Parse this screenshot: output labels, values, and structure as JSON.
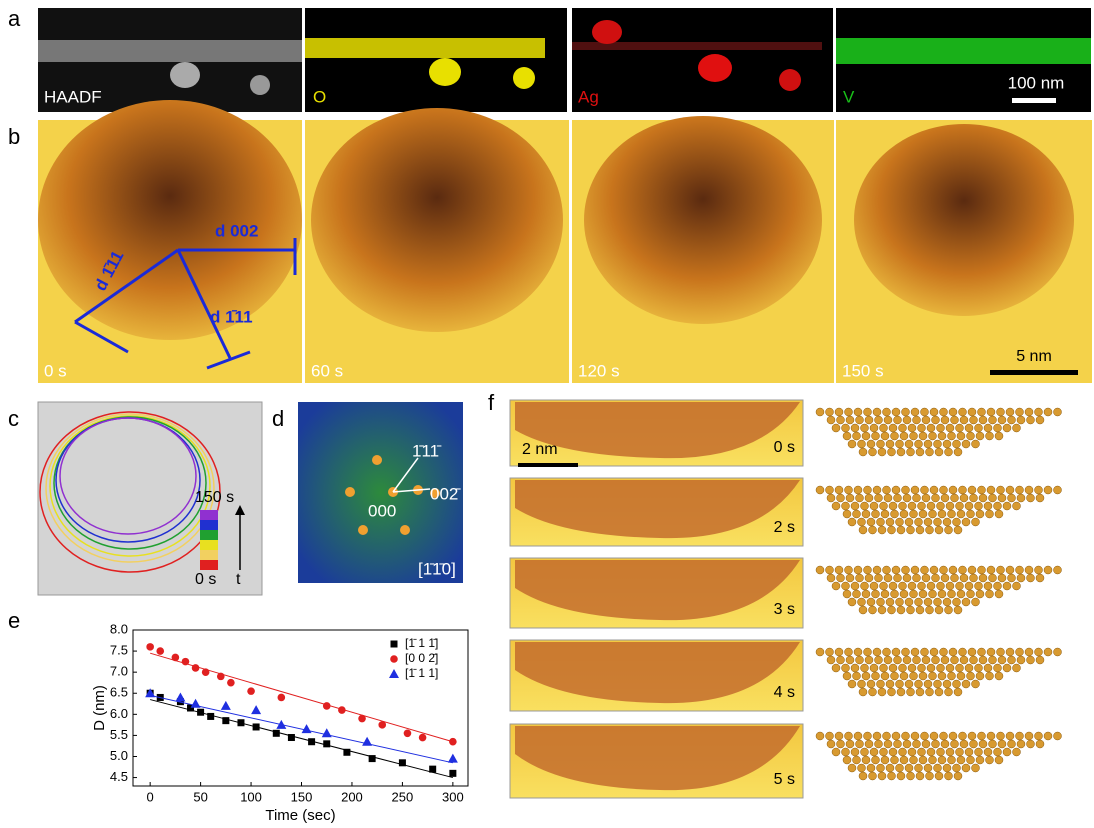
{
  "panel_a": {
    "label": "a",
    "tiles": [
      "HAADF",
      "O",
      "Ag",
      "V"
    ],
    "scale": "100 nm"
  },
  "panel_b": {
    "label": "b",
    "times": [
      "0 s",
      "60 s",
      "120 s",
      "150 s"
    ],
    "scale": "5 nm",
    "d_labels": [
      "d 002",
      "d 1̄11",
      "d 1̄11"
    ]
  },
  "panel_c": {
    "label": "c",
    "top": "150 s",
    "bottom": "0 s",
    "axis": "t"
  },
  "panel_d": {
    "label": "d",
    "spots": [
      "1̄11̄",
      "002̄",
      "000"
    ],
    "zone": "[1̄1̄0]"
  },
  "panel_f": {
    "label": "f",
    "scale": "2 nm",
    "times": [
      "0 s",
      "2 s",
      "3 s",
      "4 s",
      "5 s"
    ]
  },
  "chart_data": {
    "type": "scatter",
    "label": "e",
    "xlabel": "Time (sec)",
    "ylabel": "D (nm)",
    "xlim": [
      -17,
      315
    ],
    "ylim": [
      4.3,
      8.0
    ],
    "xticks": [
      0,
      50,
      100,
      150,
      200,
      250,
      300
    ],
    "yticks": [
      {
        "value": 4.5,
        "label": "4.5"
      },
      {
        "value": 5,
        "label": "5.0"
      },
      5.5,
      {
        "value": 6,
        "label": "6.0"
      },
      6.5,
      {
        "value": 7,
        "label": "7.0"
      },
      7.5,
      {
        "value": 8,
        "label": "8.0"
      }
    ],
    "series": [
      {
        "name": "[1̄ 1 1̄]",
        "color": "#000000",
        "marker": "square",
        "x": [
          0,
          10,
          30,
          40,
          50,
          60,
          75,
          90,
          105,
          125,
          140,
          160,
          175,
          195,
          220,
          250,
          280,
          300
        ],
        "values": [
          6.5,
          6.4,
          6.3,
          6.15,
          6.05,
          5.95,
          5.85,
          5.8,
          5.7,
          5.55,
          5.45,
          5.35,
          5.3,
          5.1,
          4.95,
          4.85,
          4.7,
          4.6
        ],
        "fit": {
          "x": [
            0,
            300
          ],
          "y": [
            6.35,
            4.5
          ]
        }
      },
      {
        "name": "[0 0 2̄]",
        "color": "#e02020",
        "marker": "circle",
        "x": [
          0,
          10,
          25,
          35,
          45,
          55,
          70,
          80,
          100,
          130,
          175,
          190,
          210,
          230,
          255,
          270,
          300
        ],
        "values": [
          7.6,
          7.5,
          7.35,
          7.25,
          7.1,
          7.0,
          6.9,
          6.75,
          6.55,
          6.4,
          6.2,
          6.1,
          5.9,
          5.75,
          5.55,
          5.45,
          5.35
        ],
        "fit": {
          "x": [
            0,
            300
          ],
          "y": [
            7.45,
            5.35
          ]
        }
      },
      {
        "name": "[1̄ 1 1]",
        "color": "#1f2fe0",
        "marker": "triangle",
        "x": [
          0,
          30,
          45,
          75,
          105,
          130,
          155,
          175,
          215,
          300
        ],
        "values": [
          6.5,
          6.4,
          6.25,
          6.2,
          6.1,
          5.75,
          5.65,
          5.55,
          5.35,
          4.95
        ],
        "fit": {
          "x": [
            0,
            300
          ],
          "y": [
            6.45,
            4.85
          ]
        }
      }
    ]
  }
}
